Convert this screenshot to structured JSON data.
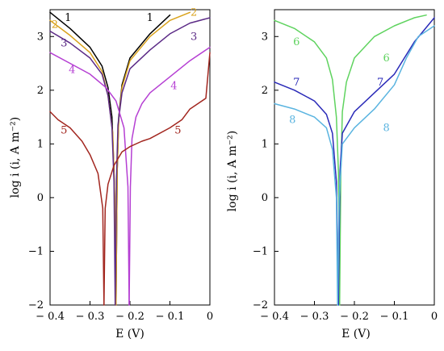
{
  "chart_data": [
    {
      "type": "line",
      "xlabel": "E (V)",
      "ylabel": "log i (i, A m⁻²)",
      "xlim": [
        -0.4,
        0
      ],
      "ylim": [
        -2,
        3.5
      ],
      "xticks": [
        "− 0.4",
        "− 0.3",
        "− 0.2",
        "− 0.1",
        "0"
      ],
      "yticks": [
        "3",
        "2",
        "1",
        "0",
        "−1",
        "−2"
      ],
      "grid": false,
      "series": [
        {
          "name": "1",
          "color": "#000000",
          "cathodic": [
            [
              -0.4,
              3.45
            ],
            [
              -0.35,
              3.15
            ],
            [
              -0.3,
              2.8
            ],
            [
              -0.27,
              2.45
            ],
            [
              -0.255,
              2.05
            ],
            [
              -0.245,
              1.5
            ],
            [
              -0.24,
              0.5
            ],
            [
              -0.237,
              -0.5
            ],
            [
              -0.235,
              -2
            ]
          ],
          "anodic": [
            [
              -0.235,
              -2
            ],
            [
              -0.232,
              0.5
            ],
            [
              -0.228,
              1.5
            ],
            [
              -0.22,
              2.1
            ],
            [
              -0.2,
              2.6
            ],
            [
              -0.15,
              3.05
            ],
            [
              -0.1,
              3.4
            ]
          ],
          "labels": [
            {
              "text": "1",
              "x": -0.355,
              "y": 3.35
            },
            {
              "text": "1",
              "x": -0.15,
              "y": 3.35
            }
          ]
        },
        {
          "name": "2",
          "color": "#d9a21b",
          "cathodic": [
            [
              -0.4,
              3.3
            ],
            [
              -0.35,
              3.02
            ],
            [
              -0.3,
              2.7
            ],
            [
              -0.27,
              2.35
            ],
            [
              -0.255,
              1.9
            ],
            [
              -0.243,
              1.2
            ],
            [
              -0.238,
              0
            ],
            [
              -0.235,
              -2
            ]
          ],
          "anodic": [
            [
              -0.235,
              -2
            ],
            [
              -0.232,
              0.5
            ],
            [
              -0.228,
              1.45
            ],
            [
              -0.22,
              2.05
            ],
            [
              -0.2,
              2.55
            ],
            [
              -0.15,
              3.0
            ],
            [
              -0.1,
              3.3
            ],
            [
              -0.05,
              3.45
            ]
          ],
          "labels": [
            {
              "text": "2",
              "x": -0.388,
              "y": 3.22
            },
            {
              "text": "2",
              "x": -0.04,
              "y": 3.45
            }
          ]
        },
        {
          "name": "3",
          "color": "#5b2a86",
          "cathodic": [
            [
              -0.4,
              3.1
            ],
            [
              -0.35,
              2.88
            ],
            [
              -0.3,
              2.6
            ],
            [
              -0.27,
              2.3
            ],
            [
              -0.255,
              1.9
            ],
            [
              -0.245,
              1.3
            ],
            [
              -0.24,
              0.3
            ],
            [
              -0.237,
              -2
            ]
          ],
          "anodic": [
            [
              -0.237,
              -2
            ],
            [
              -0.234,
              0.3
            ],
            [
              -0.23,
              1.35
            ],
            [
              -0.22,
              1.95
            ],
            [
              -0.2,
              2.4
            ],
            [
              -0.15,
              2.75
            ],
            [
              -0.1,
              3.05
            ],
            [
              -0.05,
              3.25
            ],
            [
              0,
              3.35
            ]
          ],
          "labels": [
            {
              "text": "3",
              "x": -0.365,
              "y": 2.88
            },
            {
              "text": "3",
              "x": -0.04,
              "y": 3.0
            }
          ]
        },
        {
          "name": "4",
          "color": "#b53fd3",
          "cathodic": [
            [
              -0.4,
              2.7
            ],
            [
              -0.35,
              2.5
            ],
            [
              -0.3,
              2.3
            ],
            [
              -0.26,
              2.05
            ],
            [
              -0.235,
              1.8
            ],
            [
              -0.215,
              1.3
            ],
            [
              -0.205,
              0.2
            ],
            [
              -0.202,
              -2
            ]
          ],
          "anodic": [
            [
              -0.202,
              -2
            ],
            [
              -0.199,
              0.2
            ],
            [
              -0.195,
              1.1
            ],
            [
              -0.185,
              1.5
            ],
            [
              -0.17,
              1.75
            ],
            [
              -0.15,
              1.95
            ],
            [
              -0.1,
              2.25
            ],
            [
              -0.05,
              2.55
            ],
            [
              0,
              2.8
            ]
          ],
          "labels": [
            {
              "text": "4",
              "x": -0.345,
              "y": 2.38
            },
            {
              "text": "4",
              "x": -0.09,
              "y": 2.08
            }
          ]
        },
        {
          "name": "5",
          "color": "#a2261f",
          "cathodic": [
            [
              -0.4,
              1.6
            ],
            [
              -0.38,
              1.45
            ],
            [
              -0.35,
              1.3
            ],
            [
              -0.32,
              1.05
            ],
            [
              -0.3,
              0.8
            ],
            [
              -0.28,
              0.45
            ],
            [
              -0.268,
              -0.2
            ],
            [
              -0.265,
              -2
            ]
          ],
          "anodic": [
            [
              -0.265,
              -2
            ],
            [
              -0.262,
              -0.2
            ],
            [
              -0.255,
              0.25
            ],
            [
              -0.24,
              0.6
            ],
            [
              -0.22,
              0.85
            ],
            [
              -0.2,
              0.95
            ],
            [
              -0.17,
              1.05
            ],
            [
              -0.15,
              1.1
            ],
            [
              -0.1,
              1.3
            ],
            [
              -0.07,
              1.45
            ],
            [
              -0.05,
              1.65
            ],
            [
              -0.03,
              1.75
            ],
            [
              -0.01,
              1.85
            ],
            [
              0,
              2.7
            ]
          ],
          "labels": [
            {
              "text": "5",
              "x": -0.365,
              "y": 1.25
            },
            {
              "text": "5",
              "x": -0.08,
              "y": 1.25
            }
          ]
        }
      ]
    },
    {
      "type": "line",
      "xlabel": "E (V)",
      "ylabel": "log i (i, A m⁻²)",
      "xlim": [
        -0.4,
        0
      ],
      "ylim": [
        -2,
        3.5
      ],
      "xticks": [
        "− 0.4",
        "− 0.3",
        "− 0.2",
        "− 0.1",
        "0"
      ],
      "yticks": [
        "3",
        "2",
        "1",
        "0",
        "−1",
        "−2"
      ],
      "grid": false,
      "series": [
        {
          "name": "6",
          "color": "#5fd35f",
          "cathodic": [
            [
              -0.4,
              3.3
            ],
            [
              -0.35,
              3.15
            ],
            [
              -0.3,
              2.9
            ],
            [
              -0.27,
              2.6
            ],
            [
              -0.255,
              2.2
            ],
            [
              -0.245,
              1.5
            ],
            [
              -0.24,
              0.5
            ],
            [
              -0.237,
              -2
            ]
          ],
          "anodic": [
            [
              -0.237,
              -2
            ],
            [
              -0.234,
              0.5
            ],
            [
              -0.23,
              1.6
            ],
            [
              -0.22,
              2.15
            ],
            [
              -0.2,
              2.6
            ],
            [
              -0.15,
              3.0
            ],
            [
              -0.1,
              3.2
            ],
            [
              -0.05,
              3.35
            ],
            [
              -0.02,
              3.4
            ]
          ],
          "labels": [
            {
              "text": "6",
              "x": -0.345,
              "y": 2.9
            },
            {
              "text": "6",
              "x": -0.12,
              "y": 2.6
            }
          ]
        },
        {
          "name": "7",
          "color": "#2a2ab8",
          "cathodic": [
            [
              -0.4,
              2.15
            ],
            [
              -0.35,
              2.0
            ],
            [
              -0.3,
              1.8
            ],
            [
              -0.27,
              1.55
            ],
            [
              -0.255,
              1.2
            ],
            [
              -0.245,
              0.3
            ],
            [
              -0.24,
              -2
            ]
          ],
          "anodic": [
            [
              -0.24,
              -2
            ],
            [
              -0.236,
              0.5
            ],
            [
              -0.23,
              1.2
            ],
            [
              -0.2,
              1.6
            ],
            [
              -0.15,
              1.95
            ],
            [
              -0.1,
              2.3
            ],
            [
              -0.05,
              2.9
            ],
            [
              0,
              3.35
            ]
          ],
          "labels": [
            {
              "text": "7",
              "x": -0.345,
              "y": 2.15
            },
            {
              "text": "7",
              "x": -0.135,
              "y": 2.15
            }
          ]
        },
        {
          "name": "8",
          "color": "#5ab4e0",
          "cathodic": [
            [
              -0.4,
              1.75
            ],
            [
              -0.35,
              1.65
            ],
            [
              -0.3,
              1.5
            ],
            [
              -0.27,
              1.3
            ],
            [
              -0.255,
              0.9
            ],
            [
              -0.245,
              0
            ],
            [
              -0.242,
              -2
            ]
          ],
          "anodic": [
            [
              -0.242,
              -2
            ],
            [
              -0.238,
              0
            ],
            [
              -0.23,
              1.0
            ],
            [
              -0.2,
              1.3
            ],
            [
              -0.15,
              1.65
            ],
            [
              -0.1,
              2.1
            ],
            [
              -0.07,
              2.6
            ],
            [
              -0.04,
              3.0
            ],
            [
              0,
              3.2
            ]
          ],
          "labels": [
            {
              "text": "8",
              "x": -0.355,
              "y": 1.45
            },
            {
              "text": "8",
              "x": -0.12,
              "y": 1.3
            }
          ]
        }
      ]
    }
  ]
}
